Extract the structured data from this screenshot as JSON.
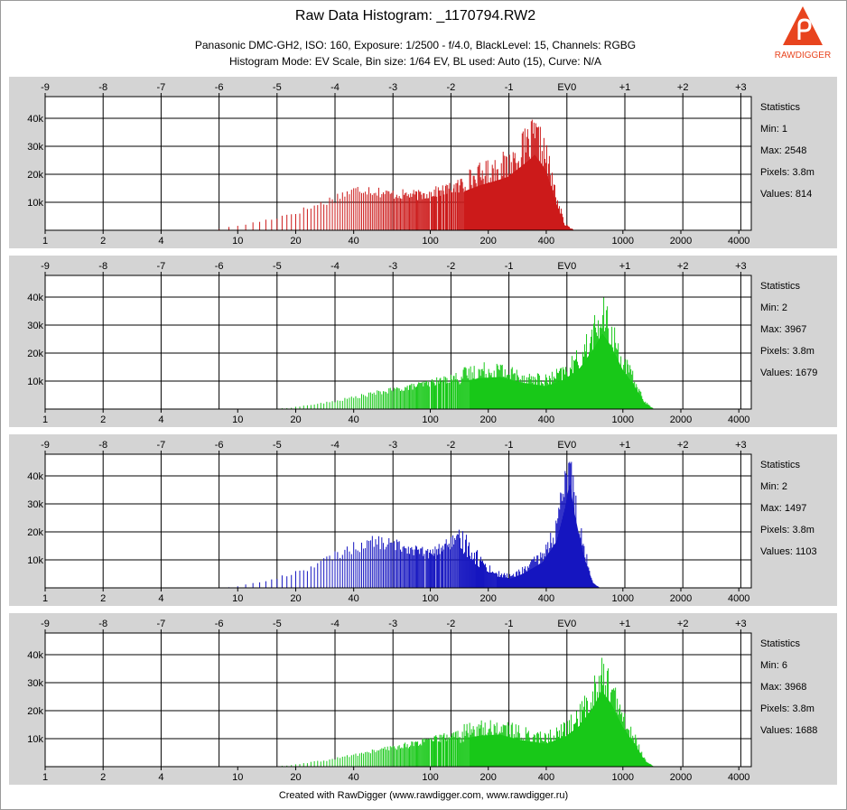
{
  "header": {
    "title": "Raw Data Histogram: _1170794.RW2",
    "info_line1": "Panasonic DMC-GH2, ISO: 160, Exposure: 1/2500 - f/4.0, BlackLevel: 15, Channels: RGBG",
    "info_line2": "Histogram Mode: EV Scale, Bin size: 1/64 EV, BL used: Auto (15), Curve: N/A",
    "logo_text": "RAWDIGGER"
  },
  "footer": "Created with RawDigger (www.rawdigger.com, www.rawdigger.ru)",
  "chart_data": [
    {
      "type": "area",
      "channel": "R",
      "color": "#cc1a1a",
      "x_scale": "log2",
      "xlim": [
        1,
        5000
      ],
      "ylim": [
        0,
        45000
      ],
      "x_ticks_bottom": [
        "1",
        "2",
        "4",
        "10",
        "20",
        "40",
        "100",
        "200",
        "400",
        "1000",
        "2000",
        "4000"
      ],
      "x_ticks_top": [
        "-9",
        "-8",
        "-7",
        "-6",
        "-5",
        "-4",
        "-3",
        "-2",
        "-1",
        "EV0",
        "+1",
        "+2",
        "+3"
      ],
      "y_ticks": [
        "10k",
        "20k",
        "30k",
        "40k"
      ],
      "stats": {
        "heading": "Statistics",
        "min": "Min: 1",
        "max": "Max: 2548",
        "pixels": "Pixels: 3.8m",
        "values": "Values: 814"
      },
      "envelope": [
        [
          7,
          0
        ],
        [
          8,
          800
        ],
        [
          10,
          1800
        ],
        [
          14,
          3800
        ],
        [
          20,
          6500
        ],
        [
          28,
          10000
        ],
        [
          35,
          13000
        ],
        [
          45,
          15000
        ],
        [
          60,
          13000
        ],
        [
          90,
          12500
        ],
        [
          130,
          15000
        ],
        [
          180,
          19500
        ],
        [
          250,
          23000
        ],
        [
          320,
          30000
        ],
        [
          350,
          33000
        ],
        [
          400,
          26000
        ],
        [
          450,
          12000
        ],
        [
          500,
          2000
        ],
        [
          560,
          0
        ]
      ]
    },
    {
      "type": "area",
      "channel": "G",
      "color": "#18c818",
      "x_scale": "log2",
      "xlim": [
        1,
        5000
      ],
      "ylim": [
        0,
        45000
      ],
      "x_ticks_bottom": [
        "1",
        "2",
        "4",
        "10",
        "20",
        "40",
        "100",
        "200",
        "400",
        "1000",
        "2000",
        "4000"
      ],
      "x_ticks_top": [
        "-9",
        "-8",
        "-7",
        "-6",
        "-5",
        "-4",
        "-3",
        "-2",
        "-1",
        "EV0",
        "+1",
        "+2",
        "+3"
      ],
      "y_ticks": [
        "10k",
        "20k",
        "30k",
        "40k"
      ],
      "stats": {
        "heading": "Statistics",
        "min": "Min: 2",
        "max": "Max: 3967",
        "pixels": "Pixels: 3.8m",
        "values": "Values: 1679"
      },
      "envelope": [
        [
          14,
          0
        ],
        [
          18,
          400
        ],
        [
          30,
          2500
        ],
        [
          50,
          5500
        ],
        [
          80,
          8000
        ],
        [
          120,
          10500
        ],
        [
          180,
          13500
        ],
        [
          230,
          14000
        ],
        [
          300,
          11500
        ],
        [
          400,
          10000
        ],
        [
          500,
          13000
        ],
        [
          600,
          18000
        ],
        [
          700,
          26000
        ],
        [
          780,
          33000
        ],
        [
          860,
          28000
        ],
        [
          1000,
          17000
        ],
        [
          1150,
          10000
        ],
        [
          1300,
          2500
        ],
        [
          1450,
          0
        ]
      ]
    },
    {
      "type": "area",
      "channel": "B",
      "color": "#1515c0",
      "x_scale": "log2",
      "xlim": [
        1,
        5000
      ],
      "ylim": [
        0,
        45000
      ],
      "x_ticks_bottom": [
        "1",
        "2",
        "4",
        "10",
        "20",
        "40",
        "100",
        "200",
        "400",
        "1000",
        "2000",
        "4000"
      ],
      "x_ticks_top": [
        "-9",
        "-8",
        "-7",
        "-6",
        "-5",
        "-4",
        "-3",
        "-2",
        "-1",
        "EV0",
        "+1",
        "+2",
        "+3"
      ],
      "y_ticks": [
        "10k",
        "20k",
        "30k",
        "40k"
      ],
      "stats": {
        "heading": "Statistics",
        "min": "Min: 2",
        "max": "Max: 1497",
        "pixels": "Pixels: 3.8m",
        "values": "Values: 1103"
      },
      "envelope": [
        [
          8,
          0
        ],
        [
          10,
          800
        ],
        [
          15,
          3000
        ],
        [
          25,
          8000
        ],
        [
          35,
          13000
        ],
        [
          50,
          16500
        ],
        [
          70,
          15000
        ],
        [
          100,
          12000
        ],
        [
          130,
          16500
        ],
        [
          150,
          17000
        ],
        [
          180,
          10000
        ],
        [
          220,
          5000
        ],
        [
          260,
          4000
        ],
        [
          300,
          6000
        ],
        [
          380,
          11000
        ],
        [
          450,
          20000
        ],
        [
          500,
          35000
        ],
        [
          530,
          46000
        ],
        [
          560,
          33000
        ],
        [
          620,
          15000
        ],
        [
          700,
          2000
        ],
        [
          760,
          0
        ]
      ]
    },
    {
      "type": "area",
      "channel": "G2",
      "color": "#18c818",
      "x_scale": "log2",
      "xlim": [
        1,
        5000
      ],
      "ylim": [
        0,
        45000
      ],
      "x_ticks_bottom": [
        "1",
        "2",
        "4",
        "10",
        "20",
        "40",
        "100",
        "200",
        "400",
        "1000",
        "2000",
        "4000"
      ],
      "x_ticks_top": [
        "-9",
        "-8",
        "-7",
        "-6",
        "-5",
        "-4",
        "-3",
        "-2",
        "-1",
        "EV0",
        "+1",
        "+2",
        "+3"
      ],
      "y_ticks": [
        "10k",
        "20k",
        "30k",
        "40k"
      ],
      "stats": {
        "heading": "Statistics",
        "min": "Min: 6",
        "max": "Max: 3968",
        "pixels": "Pixels: 3.8m",
        "values": "Values: 1688"
      },
      "envelope": [
        [
          14,
          0
        ],
        [
          18,
          400
        ],
        [
          30,
          2500
        ],
        [
          50,
          5500
        ],
        [
          80,
          8000
        ],
        [
          120,
          10500
        ],
        [
          180,
          13500
        ],
        [
          230,
          14000
        ],
        [
          300,
          11500
        ],
        [
          400,
          10000
        ],
        [
          500,
          13000
        ],
        [
          600,
          18000
        ],
        [
          700,
          26000
        ],
        [
          780,
          33000
        ],
        [
          860,
          28000
        ],
        [
          1000,
          17000
        ],
        [
          1150,
          10000
        ],
        [
          1300,
          2500
        ],
        [
          1450,
          0
        ]
      ]
    }
  ]
}
